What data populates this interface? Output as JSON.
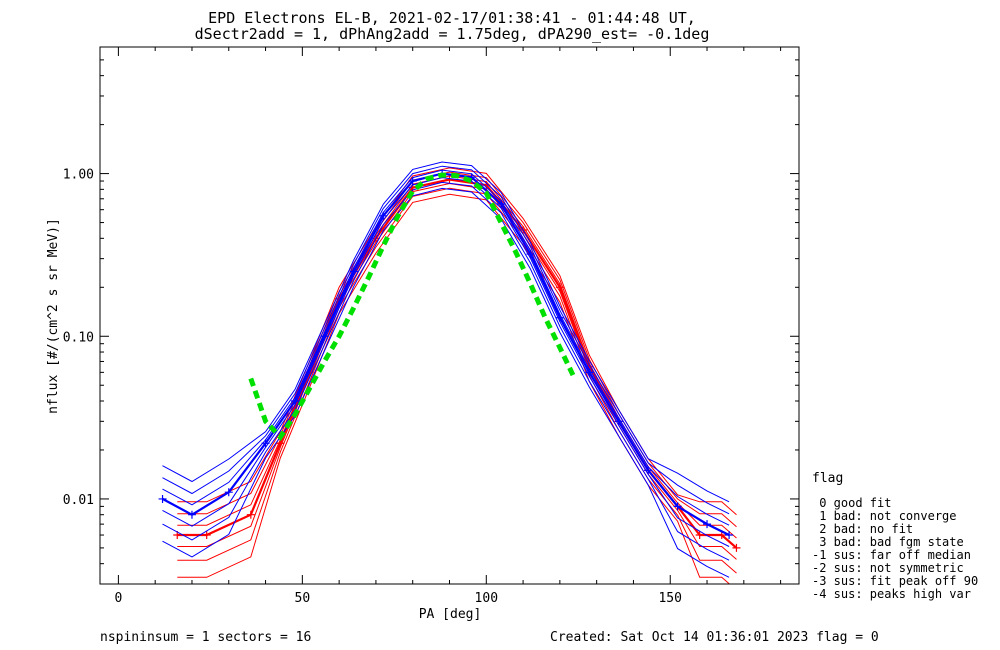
{
  "chart_data": {
    "type": "line",
    "title": "EPD Electrons EL-B, 2021-02-17/01:38:41 - 01:44:48 UT,",
    "subtitle": "dSectr2add = 1, dPhAng2add = 1.75deg, dPA290_est=  -0.1deg",
    "xlabel": "PA [deg]",
    "ylabel": "nflux [#/(cm^2 s sr MeV)]",
    "x_scale": "linear",
    "y_scale": "log",
    "xlim": [
      -5,
      185
    ],
    "ylim": [
      0.003,
      6.0
    ],
    "xticks": [
      {
        "value": 0,
        "label": "0"
      },
      {
        "value": 50,
        "label": "50"
      },
      {
        "value": 100,
        "label": "100"
      },
      {
        "value": 150,
        "label": "150"
      }
    ],
    "yticks": [
      {
        "value": 0.01,
        "label": "0.01"
      },
      {
        "value": 0.1,
        "label": "0.10"
      },
      {
        "value": 1.0,
        "label": "1.00"
      }
    ],
    "colors": {
      "red_series": "#ff0000",
      "blue_series": "#0000ff",
      "fit": "#00e000"
    },
    "series": [
      {
        "color": "red",
        "x": [
          16,
          24,
          36,
          44,
          52,
          60,
          70,
          80,
          90,
          100,
          110,
          120,
          128,
          136,
          144,
          152,
          158,
          164,
          168
        ],
        "y": [
          0.006,
          0.006,
          0.008,
          0.022,
          0.06,
          0.17,
          0.4,
          0.82,
          0.92,
          0.85,
          0.45,
          0.2,
          0.065,
          0.03,
          0.015,
          0.009,
          0.006,
          0.006,
          0.005
        ]
      },
      {
        "color": "blue",
        "x": [
          12,
          20,
          30,
          40,
          48,
          56,
          64,
          72,
          80,
          88,
          96,
          104,
          112,
          120,
          128,
          136,
          144,
          152,
          160,
          166
        ],
        "y": [
          0.01,
          0.008,
          0.011,
          0.022,
          0.04,
          0.1,
          0.25,
          0.55,
          0.9,
          1.0,
          0.95,
          0.65,
          0.32,
          0.13,
          0.06,
          0.03,
          0.015,
          0.009,
          0.007,
          0.006
        ]
      },
      {
        "color": "green-dashed",
        "x": [
          36,
          40,
          44,
          48,
          52,
          56,
          60,
          64,
          68,
          72,
          76,
          80,
          84,
          88,
          92,
          96,
          100,
          104,
          108,
          112,
          116,
          120,
          124
        ],
        "y": [
          0.055,
          0.03,
          0.024,
          0.033,
          0.048,
          0.07,
          0.1,
          0.15,
          0.23,
          0.36,
          0.55,
          0.78,
          0.93,
          0.98,
          0.97,
          0.9,
          0.76,
          0.5,
          0.33,
          0.21,
          0.13,
          0.085,
          0.055
        ]
      }
    ],
    "legend": {
      "title": "flag",
      "entries": [
        " 0 good fit",
        " 1 bad: not converge",
        " 2 bad: no fit",
        " 3 bad: bad fgm state",
        "-1 sus: far off median",
        "-2 sus: not symmetric",
        "-3 sus: fit peak off 90",
        "-4 sus: peaks high var"
      ]
    }
  },
  "footer": {
    "left": "nspininsum =  1  sectors = 16",
    "right": "Created: Sat Oct 14 01:36:01 2023   flag = 0"
  }
}
